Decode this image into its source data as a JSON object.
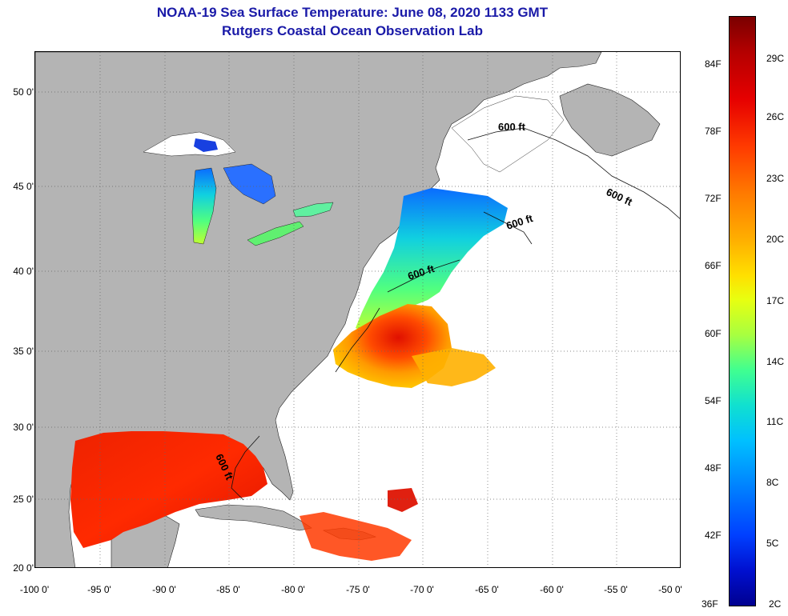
{
  "title": {
    "line1": "NOAA-19 Sea Surface Temperature:  June 08, 2020 1133 GMT",
    "line2": "Rutgers Coastal Ocean Observation Lab"
  },
  "axes": {
    "lat_labels": [
      "50 0'",
      "45 0'",
      "40 0'",
      "35 0'",
      "30 0'",
      "25 0'",
      "20 0'"
    ],
    "lon_labels": [
      "-100 0'",
      "-95 0'",
      "-90 0'",
      "-85 0'",
      "-80 0'",
      "-75 0'",
      "-70 0'",
      "-65 0'",
      "-60 0'",
      "-55 0'",
      "-50 0'"
    ]
  },
  "contours": {
    "label": "600 ft",
    "count": 5
  },
  "colorbar": {
    "fahrenheit": [
      "84F",
      "78F",
      "72F",
      "66F",
      "60F",
      "54F",
      "48F",
      "42F",
      "36F"
    ],
    "celsius": [
      "29C",
      "26C",
      "23C",
      "20C",
      "17C",
      "14C",
      "11C",
      "8C",
      "5C",
      "2C"
    ]
  },
  "colors": {
    "land": "#b4b4b4",
    "no_data": "#ffffff",
    "title": "#1a1aa8"
  }
}
